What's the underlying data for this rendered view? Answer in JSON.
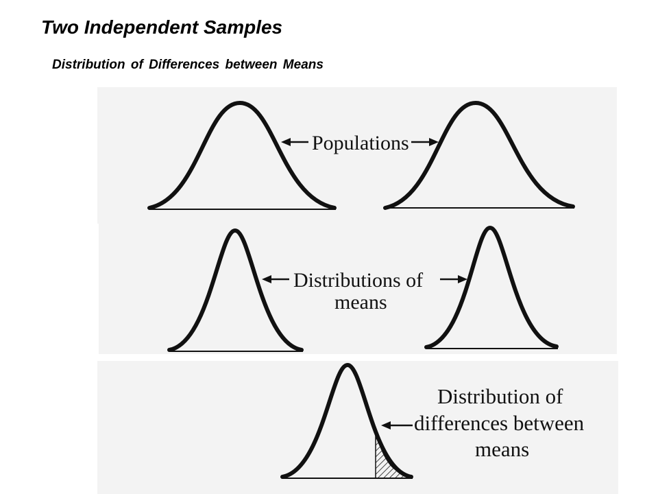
{
  "slide": {
    "title": "Two Independent Samples",
    "subtitle": "Distribution of Differences between Means"
  },
  "figure": {
    "panel_populations": {
      "label": "Populations"
    },
    "panel_distributions_of_means": {
      "label_line1": "Distributions of",
      "label_line2": "means"
    },
    "panel_distribution_of_differences": {
      "label_line1": "Distribution of",
      "label_line2": "differences between",
      "label_line3": "means"
    }
  },
  "colors": {
    "ink": "#111111",
    "panel_background": "#f3f3f3",
    "page_background": "#ffffff"
  }
}
